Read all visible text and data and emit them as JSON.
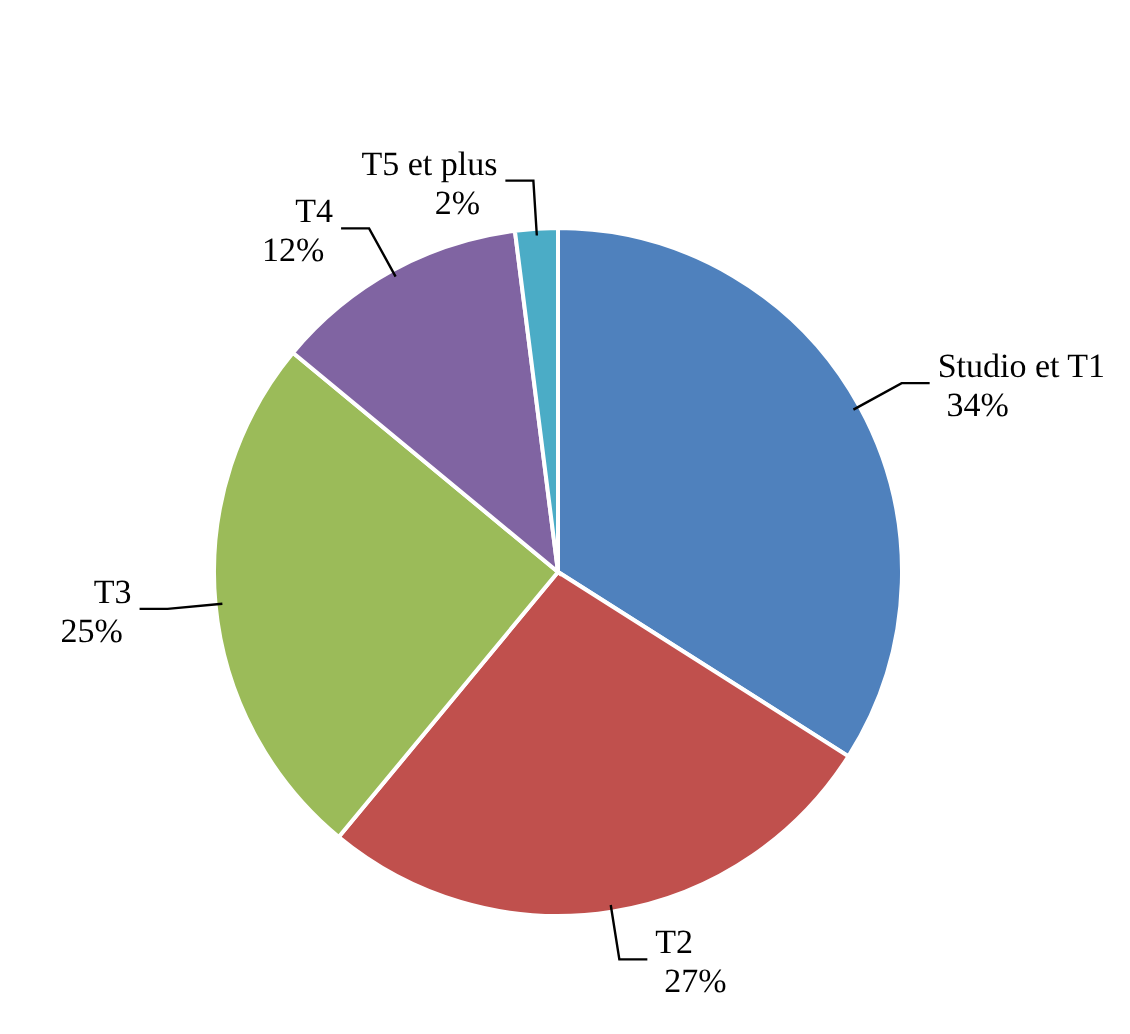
{
  "chart_data": {
    "type": "pie",
    "categories": [
      "Studio et T1",
      "T2",
      "T3",
      "T4",
      "T5 et plus"
    ],
    "values": [
      34,
      27,
      25,
      12,
      2
    ],
    "value_labels": [
      "34%",
      "27%",
      "25%",
      "12%",
      "2%"
    ],
    "colors": [
      "#4f81bd",
      "#c0504d",
      "#9bbb59",
      "#8064a2",
      "#4bacc6"
    ]
  }
}
